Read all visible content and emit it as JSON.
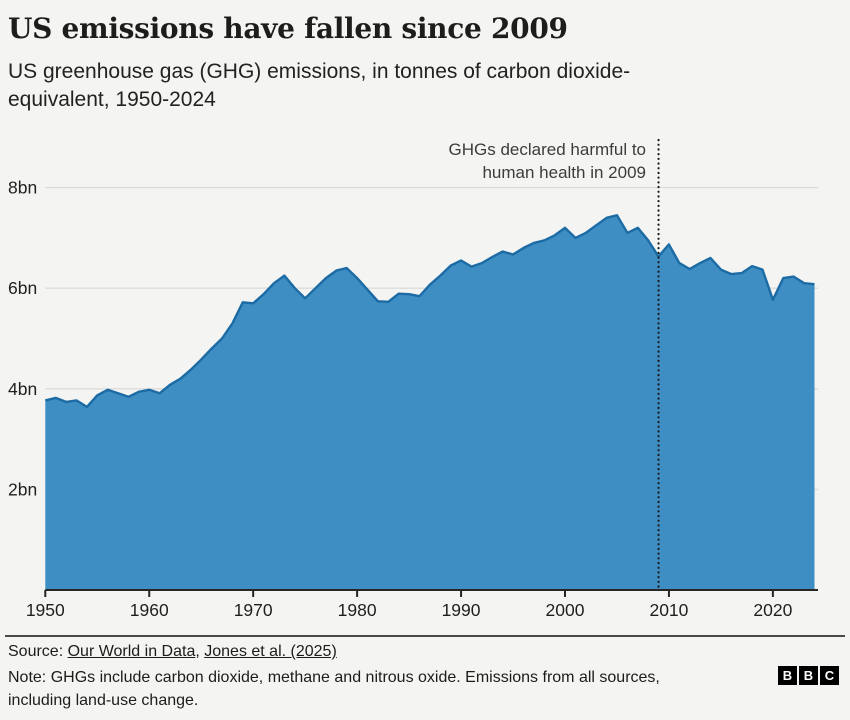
{
  "header": {
    "title": "US emissions have fallen since 2009",
    "subtitle_lines": [
      "US greenhouse gas (GHG) emissions, in tonnes of carbon dioxide-",
      "equivalent, 1950-2024"
    ]
  },
  "chart_data": {
    "type": "area",
    "title": "US emissions have fallen since 2009",
    "series_name": "US greenhouse gas emissions (tonnes CO2-equivalent)",
    "unit": "billion tonnes CO2-equivalent",
    "xlabel": "",
    "ylabel": "",
    "grid": "horizontal",
    "xlim": [
      1950,
      2024
    ],
    "ylim": [
      0,
      8.6
    ],
    "x_ticks": [
      1950,
      1960,
      1970,
      1980,
      1990,
      2000,
      2010,
      2020
    ],
    "y_ticks": [
      {
        "value": 2,
        "label": "2bn"
      },
      {
        "value": 4,
        "label": "4bn"
      },
      {
        "value": 6,
        "label": "6bn"
      },
      {
        "value": 8,
        "label": "8bn"
      }
    ],
    "x": [
      1950,
      1951,
      1952,
      1953,
      1954,
      1955,
      1956,
      1957,
      1958,
      1959,
      1960,
      1961,
      1962,
      1963,
      1964,
      1965,
      1966,
      1967,
      1968,
      1969,
      1970,
      1971,
      1972,
      1973,
      1974,
      1975,
      1976,
      1977,
      1978,
      1979,
      1980,
      1981,
      1982,
      1983,
      1984,
      1985,
      1986,
      1987,
      1988,
      1989,
      1990,
      1991,
      1992,
      1993,
      1994,
      1995,
      1996,
      1997,
      1998,
      1999,
      2000,
      2001,
      2002,
      2003,
      2004,
      2005,
      2006,
      2007,
      2008,
      2009,
      2010,
      2011,
      2012,
      2013,
      2014,
      2015,
      2016,
      2017,
      2018,
      2019,
      2020,
      2021,
      2022,
      2023,
      2024
    ],
    "values": [
      3.77,
      3.82,
      3.74,
      3.77,
      3.64,
      3.87,
      3.98,
      3.91,
      3.84,
      3.94,
      3.98,
      3.91,
      4.08,
      4.2,
      4.38,
      4.58,
      4.8,
      5.0,
      5.3,
      5.72,
      5.7,
      5.88,
      6.1,
      6.25,
      6.0,
      5.8,
      6.0,
      6.2,
      6.35,
      6.4,
      6.2,
      5.97,
      5.74,
      5.73,
      5.89,
      5.88,
      5.84,
      6.07,
      6.25,
      6.45,
      6.55,
      6.43,
      6.5,
      6.62,
      6.73,
      6.67,
      6.8,
      6.9,
      6.95,
      7.05,
      7.2,
      7.0,
      7.1,
      7.25,
      7.4,
      7.45,
      7.1,
      7.2,
      6.95,
      6.63,
      6.87,
      6.5,
      6.38,
      6.5,
      6.6,
      6.37,
      6.28,
      6.3,
      6.44,
      6.37,
      5.77,
      6.2,
      6.23,
      6.1,
      6.08
    ],
    "annotation": {
      "lines": [
        "GHGs declared harmful to",
        "human health in 2009"
      ],
      "x_year": 2009
    },
    "colors": {
      "area_fill": "#3E8EC4",
      "line": "#1C6BA4",
      "grid": "#dcdcda",
      "axis": "#262624",
      "dotted_line": "#1a1a1a",
      "tick_text": "#1f1f1d"
    }
  },
  "footer": {
    "source_label": "Source:",
    "source_links": [
      "Our World in Data",
      "Jones et al. (2025)"
    ],
    "source_separator": ",",
    "note_lines": [
      "Note: GHGs include carbon dioxide, methane and nitrous oxide. Emissions from all sources,",
      "including land-use change."
    ],
    "logo_letters": [
      "B",
      "B",
      "C"
    ]
  }
}
